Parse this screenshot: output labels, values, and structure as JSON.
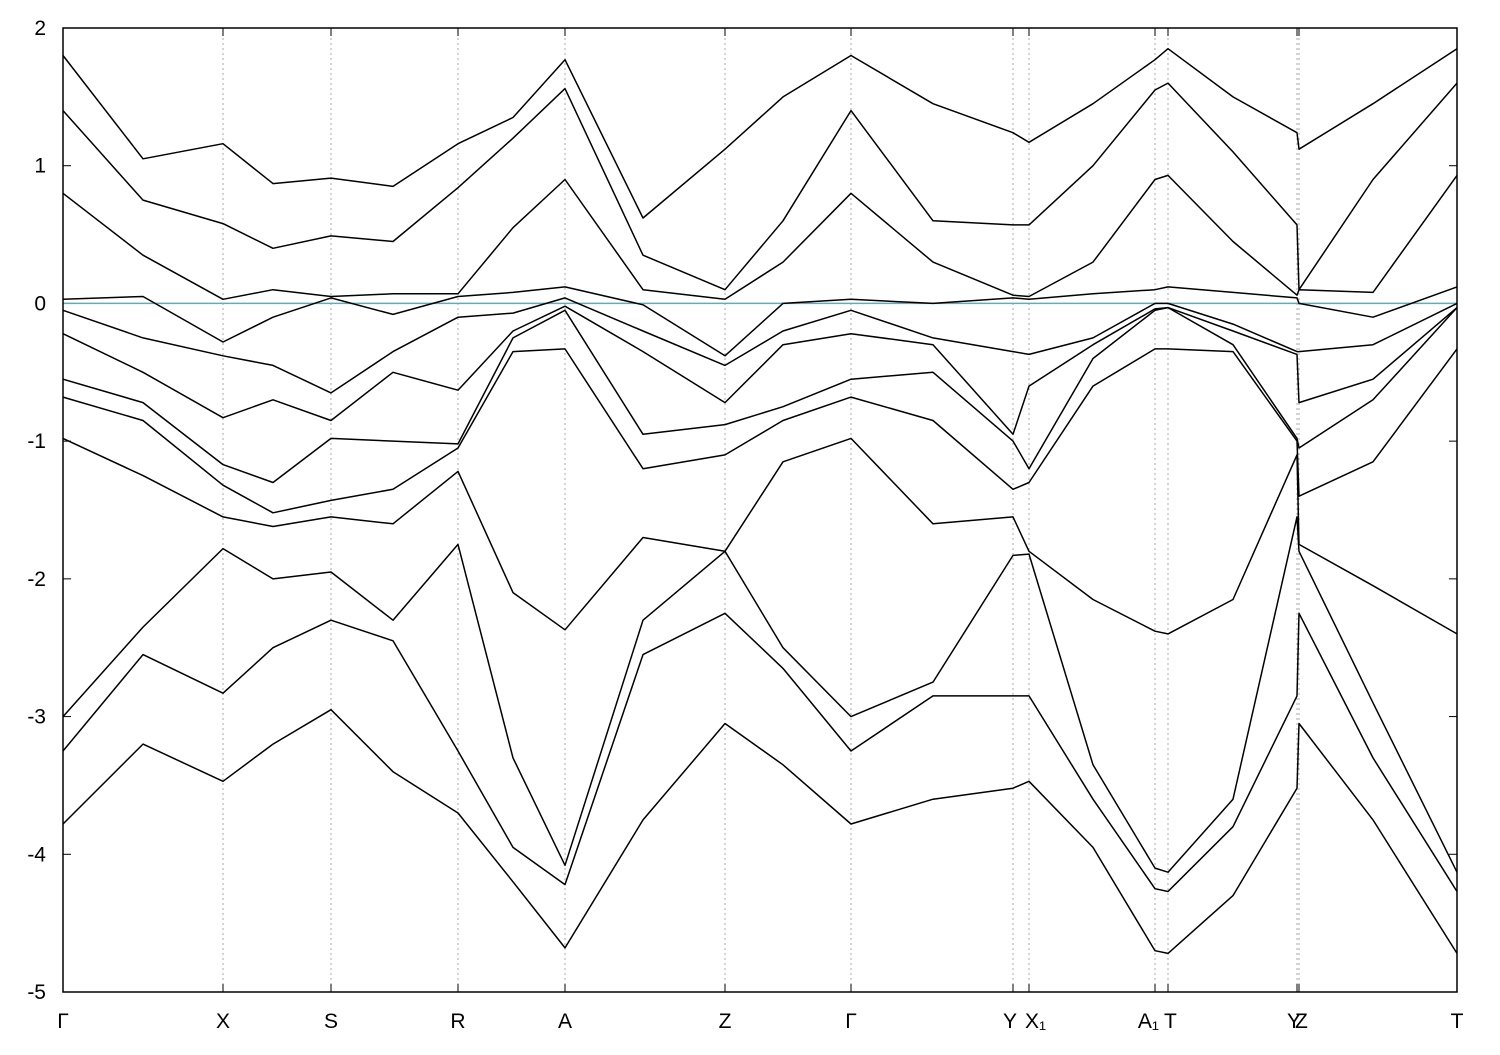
{
  "chart_data": {
    "type": "line",
    "x": [
      0,
      0.8,
      1.6,
      2.1,
      2.68,
      3.3,
      3.95,
      4.5,
      5.02,
      5.8,
      6.62,
      7.2,
      7.88,
      8.7,
      9.5,
      9.66,
      10.3,
      10.92,
      11.05,
      11.7,
      12.34,
      12.36,
      13.1,
      13.94
    ],
    "xlim": [
      0,
      13.94
    ],
    "xticks": [
      {
        "value": 0,
        "label": "Γ"
      },
      {
        "value": 1.6,
        "label": "X"
      },
      {
        "value": 2.68,
        "label": "S"
      },
      {
        "value": 3.95,
        "label": "R"
      },
      {
        "value": 5.02,
        "label": "A"
      },
      {
        "value": 6.62,
        "label": "Z"
      },
      {
        "value": 7.88,
        "label": "Γ"
      },
      {
        "value": 9.5,
        "label": "Y"
      },
      {
        "value": 9.66,
        "label": "X₁"
      },
      {
        "value": 10.92,
        "label": "A₁"
      },
      {
        "value": 11.05,
        "label": "T"
      },
      {
        "value": 12.34,
        "label": "Y"
      },
      {
        "value": 12.36,
        "label": "Z"
      },
      {
        "value": 13.94,
        "label": "T"
      }
    ],
    "ylim": [
      -5,
      2
    ],
    "yticks": [
      -5,
      -4,
      -3,
      -2,
      -1,
      0,
      1,
      2
    ],
    "grid": "x",
    "fermi_level": {
      "value": 0,
      "color": "#4fb3c4"
    },
    "series": [
      {
        "color": "#000000",
        "values": [
          -3.78,
          -3.2,
          -3.47,
          -3.2,
          -2.95,
          -3.4,
          -3.7,
          -4.2,
          -4.68,
          -3.75,
          -3.05,
          -3.35,
          -3.78,
          -3.6,
          -3.52,
          -3.47,
          -3.95,
          -4.7,
          -4.72,
          -4.3,
          -3.52,
          -3.05,
          -3.75,
          -4.72
        ]
      },
      {
        "color": "#000000",
        "values": [
          -3.25,
          -2.55,
          -2.83,
          -2.5,
          -2.3,
          -2.45,
          -3.25,
          -3.95,
          -4.22,
          -2.55,
          -2.25,
          -2.65,
          -3.25,
          -2.85,
          -2.85,
          -2.85,
          -3.6,
          -4.25,
          -4.27,
          -3.8,
          -2.85,
          -2.25,
          -3.3,
          -4.27
        ]
      },
      {
        "color": "#000000",
        "values": [
          -3.0,
          -2.35,
          -1.78,
          -2.0,
          -1.95,
          -2.3,
          -1.75,
          -3.3,
          -4.08,
          -2.3,
          -1.8,
          -2.5,
          -3.0,
          -2.75,
          -1.83,
          -1.82,
          -3.35,
          -4.1,
          -4.13,
          -3.6,
          -1.55,
          -1.8,
          -2.9,
          -4.13
        ]
      },
      {
        "color": "#000000",
        "values": [
          -0.98,
          -1.25,
          -1.55,
          -1.62,
          -1.55,
          -1.6,
          -1.22,
          -2.1,
          -2.37,
          -1.7,
          -1.8,
          -1.15,
          -0.98,
          -1.6,
          -1.55,
          -1.8,
          -2.15,
          -2.38,
          -2.4,
          -2.15,
          -1.1,
          -1.75,
          -2.05,
          -2.4
        ]
      },
      {
        "color": "#000000",
        "values": [
          -0.68,
          -0.85,
          -1.32,
          -1.52,
          -1.43,
          -1.35,
          -1.05,
          -0.35,
          -0.33,
          -1.2,
          -1.1,
          -0.85,
          -0.68,
          -0.85,
          -1.35,
          -1.3,
          -0.6,
          -0.33,
          -0.33,
          -0.35,
          -1.0,
          -1.4,
          -1.15,
          -0.33
        ]
      },
      {
        "color": "#000000",
        "values": [
          -0.55,
          -0.72,
          -1.17,
          -1.3,
          -0.98,
          -1.0,
          -1.02,
          -0.25,
          -0.05,
          -0.95,
          -0.88,
          -0.75,
          -0.55,
          -0.5,
          -1.0,
          -1.2,
          -0.4,
          -0.05,
          -0.03,
          -0.3,
          -0.98,
          -1.05,
          -0.7,
          -0.03
        ]
      },
      {
        "color": "#000000",
        "values": [
          -0.22,
          -0.5,
          -0.83,
          -0.7,
          -0.85,
          -0.5,
          -0.63,
          -0.2,
          -0.02,
          -0.35,
          -0.72,
          -0.3,
          -0.22,
          -0.3,
          -0.95,
          -0.6,
          -0.3,
          -0.04,
          -0.03,
          -0.2,
          -0.37,
          -0.72,
          -0.55,
          -0.03
        ]
      },
      {
        "color": "#000000",
        "values": [
          -0.05,
          -0.25,
          -0.38,
          -0.45,
          -0.65,
          -0.35,
          -0.1,
          -0.07,
          0.04,
          -0.2,
          -0.45,
          -0.2,
          -0.05,
          -0.25,
          -0.35,
          -0.37,
          -0.25,
          0.0,
          0.0,
          -0.15,
          -0.35,
          -0.35,
          -0.3,
          0.0
        ]
      },
      {
        "color": "#000000",
        "values": [
          0.03,
          0.05,
          -0.28,
          -0.1,
          0.04,
          -0.08,
          0.05,
          0.08,
          0.12,
          -0.01,
          -0.38,
          0.0,
          0.03,
          0.0,
          0.04,
          0.03,
          0.07,
          0.1,
          0.12,
          0.08,
          0.04,
          0.0,
          -0.1,
          0.12
        ]
      },
      {
        "color": "#000000",
        "values": [
          0.8,
          0.35,
          0.03,
          0.1,
          0.05,
          0.07,
          0.07,
          0.55,
          0.9,
          0.1,
          0.03,
          0.3,
          0.8,
          0.3,
          0.06,
          0.05,
          0.3,
          0.9,
          0.93,
          0.45,
          0.06,
          0.1,
          0.08,
          0.93
        ]
      },
      {
        "color": "#000000",
        "values": [
          1.4,
          0.75,
          0.58,
          0.4,
          0.49,
          0.45,
          0.84,
          1.2,
          1.56,
          0.35,
          0.1,
          0.6,
          1.4,
          0.6,
          0.57,
          0.57,
          1.0,
          1.55,
          1.6,
          1.1,
          0.57,
          0.1,
          0.9,
          1.6
        ]
      },
      {
        "color": "#000000",
        "values": [
          1.8,
          1.05,
          1.16,
          0.87,
          0.91,
          0.85,
          1.16,
          1.35,
          1.77,
          0.62,
          1.12,
          1.5,
          1.8,
          1.45,
          1.24,
          1.17,
          1.45,
          1.77,
          1.85,
          1.5,
          1.24,
          1.12,
          1.45,
          1.85
        ]
      }
    ]
  }
}
